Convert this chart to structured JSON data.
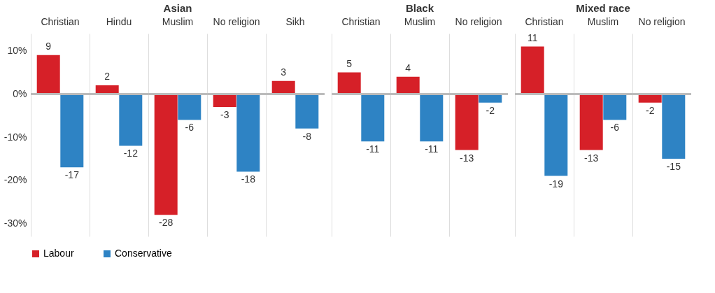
{
  "chart_data": [
    {
      "type": "bar",
      "title": "Asian",
      "categories": [
        "Christian",
        "Hindu",
        "Muslim",
        "No religion",
        "Sikh"
      ],
      "series": [
        {
          "name": "Labour",
          "color": "#d62028",
          "values": [
            9,
            2,
            -28,
            -3,
            3
          ]
        },
        {
          "name": "Conservative",
          "color": "#2e83c4",
          "values": [
            -17,
            -12,
            -6,
            -18,
            -8
          ]
        }
      ],
      "ylim": [
        -33,
        14
      ],
      "yticks": [
        {
          "value": -30,
          "label": "-30%"
        },
        {
          "value": -20,
          "label": "-20%"
        },
        {
          "value": -10,
          "label": "-10%"
        },
        {
          "value": 0,
          "label": "0%"
        },
        {
          "value": 10,
          "label": "10%"
        }
      ],
      "ref_lines": [
        {
          "axis": "y",
          "value": 0,
          "color": "#bbbbbb"
        }
      ],
      "grid": "x",
      "data_labels": true,
      "legend": "bottom"
    },
    {
      "type": "bar",
      "title": "Black",
      "categories": [
        "Christian",
        "Muslim",
        "No religion"
      ],
      "series": [
        {
          "name": "Labour",
          "color": "#d62028",
          "values": [
            5,
            4,
            -13
          ]
        },
        {
          "name": "Conservative",
          "color": "#2e83c4",
          "values": [
            -11,
            -11,
            -2
          ]
        }
      ],
      "ylim": [
        -33,
        14
      ],
      "ref_lines": [
        {
          "axis": "y",
          "value": 0,
          "color": "#bbbbbb"
        }
      ],
      "grid": "x",
      "data_labels": true,
      "legend": "bottom",
      "tick_labels": "x"
    },
    {
      "type": "bar",
      "title": "Mixed race",
      "categories": [
        "Christian",
        "Muslim",
        "No religion"
      ],
      "series": [
        {
          "name": "Labour",
          "color": "#d62028",
          "values": [
            11,
            -13,
            -2
          ]
        },
        {
          "name": "Conservative",
          "color": "#2e83c4",
          "values": [
            -19,
            -6,
            -15
          ]
        }
      ],
      "ylim": [
        -33,
        14
      ],
      "ref_lines": [
        {
          "axis": "y",
          "value": 0,
          "color": "#bbbbbb"
        }
      ],
      "grid": "x",
      "data_labels": true,
      "legend": "bottom",
      "tick_labels": "x"
    }
  ]
}
